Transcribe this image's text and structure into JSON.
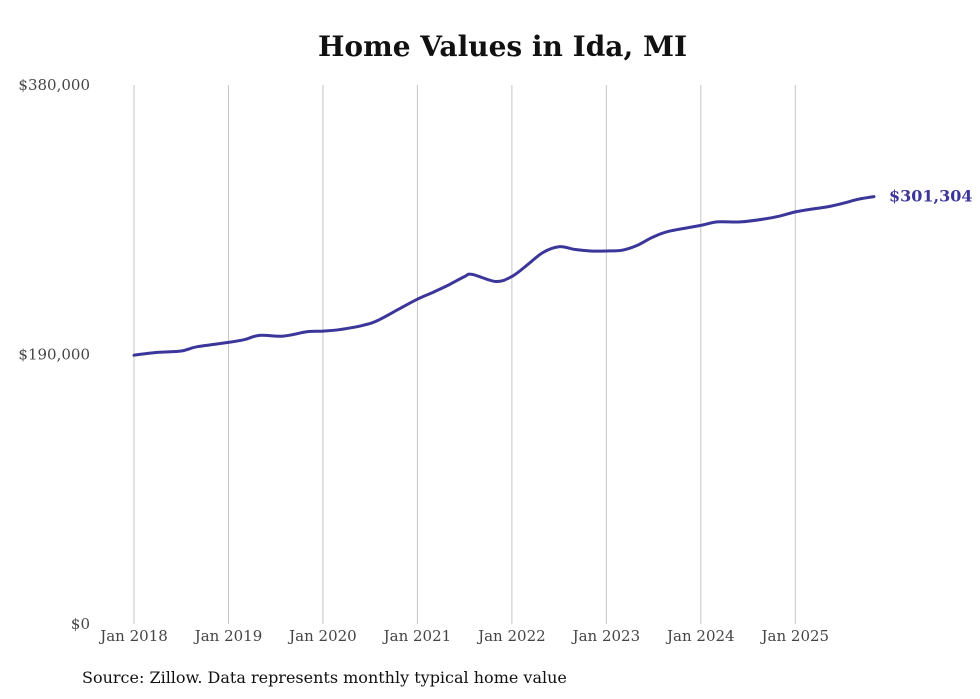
{
  "chart_data": {
    "type": "line",
    "title": "Home Values in Ida, MI",
    "source": "Source: Zillow. Data represents monthly typical home value",
    "ylim": [
      0,
      380000
    ],
    "y_ticks": [
      {
        "value": 0,
        "label": "$0"
      },
      {
        "value": 190000,
        "label": "$190,000"
      },
      {
        "value": 380000,
        "label": "$380,000"
      }
    ],
    "x_range": [
      2018.0,
      2025.833
    ],
    "x_ticks": [
      {
        "value": 2018,
        "label": "Jan 2018"
      },
      {
        "value": 2019,
        "label": "Jan 2019"
      },
      {
        "value": 2020,
        "label": "Jan 2020"
      },
      {
        "value": 2021,
        "label": "Jan 2021"
      },
      {
        "value": 2022,
        "label": "Jan 2022"
      },
      {
        "value": 2023,
        "label": "Jan 2023"
      },
      {
        "value": 2024,
        "label": "Jan 2024"
      },
      {
        "value": 2025,
        "label": "Jan 2025"
      }
    ],
    "grid": "vertical",
    "series": [
      {
        "name": "Ida, MI typical home value",
        "color": "#3b3699",
        "end_label": "$301,304",
        "points": [
          [
            2018.0,
            189500
          ],
          [
            2018.25,
            191500
          ],
          [
            2018.5,
            192500
          ],
          [
            2018.67,
            195500
          ],
          [
            2019.0,
            198500
          ],
          [
            2019.17,
            200500
          ],
          [
            2019.33,
            203500
          ],
          [
            2019.58,
            203000
          ],
          [
            2019.83,
            206000
          ],
          [
            2020.0,
            206500
          ],
          [
            2020.17,
            207500
          ],
          [
            2020.42,
            210500
          ],
          [
            2020.58,
            214000
          ],
          [
            2020.83,
            223000
          ],
          [
            2021.0,
            229000
          ],
          [
            2021.17,
            234000
          ],
          [
            2021.33,
            239000
          ],
          [
            2021.5,
            245000
          ],
          [
            2021.58,
            246500
          ],
          [
            2021.83,
            241500
          ],
          [
            2022.0,
            245000
          ],
          [
            2022.17,
            253500
          ],
          [
            2022.33,
            262000
          ],
          [
            2022.5,
            266000
          ],
          [
            2022.67,
            264000
          ],
          [
            2022.83,
            263000
          ],
          [
            2023.0,
            263000
          ],
          [
            2023.17,
            263500
          ],
          [
            2023.33,
            267000
          ],
          [
            2023.5,
            273000
          ],
          [
            2023.67,
            277000
          ],
          [
            2024.0,
            281000
          ],
          [
            2024.17,
            283500
          ],
          [
            2024.42,
            283500
          ],
          [
            2024.67,
            285500
          ],
          [
            2024.83,
            287500
          ],
          [
            2025.0,
            290500
          ],
          [
            2025.17,
            292500
          ],
          [
            2025.33,
            294000
          ],
          [
            2025.5,
            296500
          ],
          [
            2025.67,
            299500
          ],
          [
            2025.833,
            301304
          ]
        ]
      }
    ]
  }
}
